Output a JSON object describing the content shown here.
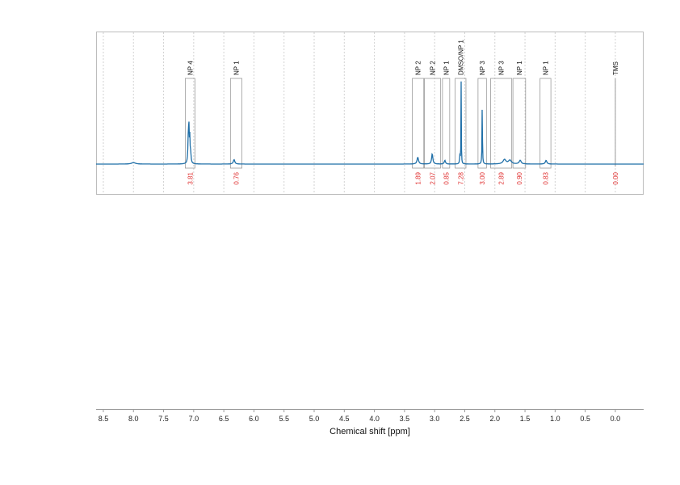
{
  "chart_data": {
    "type": "line",
    "xlabel": "Chemical shift [ppm]",
    "xlim": [
      8.62,
      -0.47
    ],
    "x_reversed": true,
    "x_ticks": [
      "8.5",
      "8.0",
      "7.5",
      "7.0",
      "6.5",
      "6.0",
      "5.5",
      "5.0",
      "4.5",
      "4.0",
      "3.5",
      "3.0",
      "2.5",
      "2.0",
      "1.5",
      "1.0",
      "0.5",
      "0.0"
    ],
    "grid": true,
    "series_color": "#1f6fa8",
    "label_color": "#e03030",
    "peaks": [
      {
        "x": 8.0,
        "h": 0.02,
        "w": 0.04
      },
      {
        "x": 7.09,
        "h": 0.3,
        "w": 0.008
      },
      {
        "x": 7.08,
        "h": 0.45,
        "w": 0.006
      },
      {
        "x": 7.065,
        "h": 0.32,
        "w": 0.006
      },
      {
        "x": 7.05,
        "h": 0.12,
        "w": 0.008
      },
      {
        "x": 6.33,
        "h": 0.06,
        "w": 0.015
      },
      {
        "x": 3.28,
        "h": 0.09,
        "w": 0.015
      },
      {
        "x": 3.04,
        "h": 0.14,
        "w": 0.012
      },
      {
        "x": 2.83,
        "h": 0.05,
        "w": 0.012
      },
      {
        "x": 2.58,
        "h": 0.12,
        "w": 0.006
      },
      {
        "x": 2.56,
        "h": 1.1,
        "w": 0.003
      },
      {
        "x": 2.21,
        "h": 0.82,
        "w": 0.004
      },
      {
        "x": 1.84,
        "h": 0.06,
        "w": 0.03
      },
      {
        "x": 1.75,
        "h": 0.05,
        "w": 0.03
      },
      {
        "x": 1.58,
        "h": 0.05,
        "w": 0.02
      },
      {
        "x": 1.15,
        "h": 0.05,
        "w": 0.015
      }
    ],
    "regions": [
      {
        "label": "NP 4",
        "from": 7.14,
        "to": 6.98,
        "integral": "3.81",
        "tick": false
      },
      {
        "label": "NP 1",
        "from": 6.39,
        "to": 6.2,
        "integral": "0.76",
        "tick": false
      },
      {
        "label": "NP 2",
        "from": 3.37,
        "to": 3.18,
        "integral": "1.89",
        "tick": false
      },
      {
        "label": "NP 2",
        "from": 3.17,
        "to": 2.9,
        "integral": "2.07",
        "tick": false
      },
      {
        "label": "NP 1",
        "from": 2.87,
        "to": 2.75,
        "integral": "0.85",
        "tick": false
      },
      {
        "label": "DMSO/NP 1",
        "from": 2.66,
        "to": 2.48,
        "integral": "7.28",
        "tick": false
      },
      {
        "label": "NP 3",
        "from": 2.28,
        "to": 2.14,
        "integral": "3.00",
        "tick": false
      },
      {
        "label": "NP 3",
        "from": 2.07,
        "to": 1.72,
        "integral": "2.89",
        "tick": false
      },
      {
        "label": "NP 1",
        "from": 1.7,
        "to": 1.49,
        "integral": "0.90",
        "tick": false
      },
      {
        "label": "NP 1",
        "from": 1.25,
        "to": 1.07,
        "integral": "0.83",
        "tick": false
      },
      {
        "label": "TMS",
        "from": 0.02,
        "to": -0.02,
        "integral": "0.00",
        "tick": true
      }
    ]
  }
}
